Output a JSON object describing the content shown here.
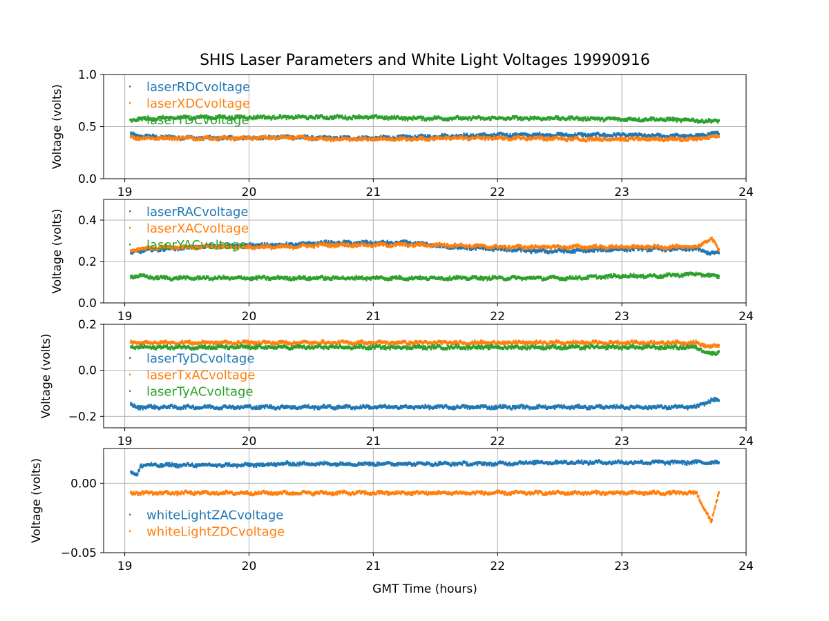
{
  "title": "SHIS Laser Parameters and White Light Voltages 19990916",
  "chart_data": [
    {
      "type": "scatter",
      "xlabel": "",
      "ylabel": "Voltage (volts)",
      "xlim": [
        18.83,
        24.0
      ],
      "ylim": [
        0.0,
        1.0
      ],
      "xticks": [
        19,
        20,
        21,
        22,
        23,
        24
      ],
      "xtick_labels": [
        "19",
        "20",
        "21",
        "22",
        "23",
        "24"
      ],
      "yticks": [
        0.0,
        0.5,
        1.0
      ],
      "ytick_labels": [
        "0.0",
        "0.5",
        "1.0"
      ],
      "grid": true,
      "legend_position": "top-left",
      "series": [
        {
          "name": "laserRDCvoltage",
          "color": "#1f77b4",
          "x": [
            19.05,
            19.1,
            19.3,
            19.6,
            20.0,
            20.3,
            20.6,
            21.0,
            21.3,
            21.6,
            22.0,
            22.3,
            22.6,
            23.0,
            23.3,
            23.6,
            23.72,
            23.78
          ],
          "y": [
            0.43,
            0.41,
            0.4,
            0.39,
            0.39,
            0.4,
            0.39,
            0.39,
            0.4,
            0.41,
            0.42,
            0.42,
            0.42,
            0.42,
            0.41,
            0.41,
            0.43,
            0.43
          ]
        },
        {
          "name": "laserXDCvoltage",
          "color": "#ff7f0e",
          "x": [
            19.05,
            19.1,
            19.3,
            19.6,
            20.0,
            20.3,
            20.6,
            21.0,
            21.3,
            21.6,
            22.0,
            22.3,
            22.6,
            23.0,
            23.3,
            23.6,
            23.72,
            23.78
          ],
          "y": [
            0.41,
            0.39,
            0.39,
            0.39,
            0.39,
            0.4,
            0.38,
            0.38,
            0.38,
            0.39,
            0.39,
            0.39,
            0.38,
            0.38,
            0.38,
            0.38,
            0.4,
            0.4
          ]
        },
        {
          "name": "laserYDCvoltage",
          "color": "#2ca02c",
          "x": [
            19.05,
            19.1,
            19.3,
            19.6,
            20.0,
            20.3,
            20.6,
            21.0,
            21.3,
            21.6,
            22.0,
            22.3,
            22.6,
            23.0,
            23.3,
            23.6,
            23.72,
            23.78
          ],
          "y": [
            0.56,
            0.57,
            0.58,
            0.59,
            0.59,
            0.59,
            0.59,
            0.59,
            0.58,
            0.58,
            0.58,
            0.58,
            0.58,
            0.57,
            0.57,
            0.56,
            0.55,
            0.56
          ]
        }
      ]
    },
    {
      "type": "scatter",
      "xlabel": "",
      "ylabel": "Voltage (volts)",
      "xlim": [
        18.83,
        24.0
      ],
      "ylim": [
        0.0,
        0.5
      ],
      "xticks": [
        19,
        20,
        21,
        22,
        23,
        24
      ],
      "xtick_labels": [
        "19",
        "20",
        "21",
        "22",
        "23",
        "24"
      ],
      "yticks": [
        0.0,
        0.2,
        0.4
      ],
      "ytick_labels": [
        "0.0",
        "0.2",
        "0.4"
      ],
      "grid": true,
      "legend_position": "top-left",
      "series": [
        {
          "name": "laserRACvoltage",
          "color": "#1f77b4",
          "x": [
            19.05,
            19.1,
            19.3,
            19.6,
            20.0,
            20.3,
            20.6,
            21.0,
            21.3,
            21.6,
            22.0,
            22.3,
            22.6,
            23.0,
            23.3,
            23.6,
            23.72,
            23.78
          ],
          "y": [
            0.24,
            0.25,
            0.26,
            0.27,
            0.28,
            0.28,
            0.29,
            0.29,
            0.29,
            0.27,
            0.26,
            0.25,
            0.25,
            0.26,
            0.26,
            0.26,
            0.24,
            0.24
          ]
        },
        {
          "name": "laserXACvoltage",
          "color": "#ff7f0e",
          "x": [
            19.05,
            19.1,
            19.3,
            19.6,
            20.0,
            20.3,
            20.6,
            21.0,
            21.3,
            21.6,
            22.0,
            22.3,
            22.6,
            23.0,
            23.3,
            23.6,
            23.72,
            23.78
          ],
          "y": [
            0.25,
            0.26,
            0.27,
            0.27,
            0.27,
            0.27,
            0.28,
            0.28,
            0.28,
            0.28,
            0.27,
            0.27,
            0.27,
            0.27,
            0.27,
            0.27,
            0.31,
            0.26
          ]
        },
        {
          "name": "laserYACvoltage",
          "color": "#2ca02c",
          "x": [
            19.05,
            19.1,
            19.3,
            19.6,
            20.0,
            20.3,
            20.6,
            21.0,
            21.3,
            21.6,
            22.0,
            22.3,
            22.6,
            23.0,
            23.3,
            23.6,
            23.72,
            23.78
          ],
          "y": [
            0.13,
            0.13,
            0.12,
            0.12,
            0.12,
            0.12,
            0.12,
            0.12,
            0.12,
            0.12,
            0.12,
            0.12,
            0.12,
            0.13,
            0.13,
            0.14,
            0.13,
            0.13
          ]
        }
      ]
    },
    {
      "type": "scatter",
      "xlabel": "",
      "ylabel": "Voltage (volts)",
      "xlim": [
        18.83,
        24.0
      ],
      "ylim": [
        -0.25,
        0.2
      ],
      "xticks": [
        19,
        20,
        21,
        22,
        23,
        24
      ],
      "xtick_labels": [
        "19",
        "20",
        "21",
        "22",
        "23",
        "24"
      ],
      "yticks": [
        -0.2,
        0.0,
        0.2
      ],
      "ytick_labels": [
        "−0.2",
        "0.0",
        "0.2"
      ],
      "grid": true,
      "legend_position": "center-left",
      "series": [
        {
          "name": "laserTyDCvoltage",
          "color": "#1f77b4",
          "x": [
            19.05,
            19.1,
            19.3,
            19.6,
            20.0,
            20.3,
            20.6,
            21.0,
            21.3,
            21.6,
            22.0,
            22.3,
            22.6,
            23.0,
            23.3,
            23.6,
            23.72,
            23.78
          ],
          "y": [
            -0.15,
            -0.16,
            -0.16,
            -0.16,
            -0.16,
            -0.16,
            -0.16,
            -0.16,
            -0.16,
            -0.16,
            -0.16,
            -0.16,
            -0.16,
            -0.16,
            -0.16,
            -0.16,
            -0.13,
            -0.13
          ]
        },
        {
          "name": "laserTxACvoltage",
          "color": "#ff7f0e",
          "x": [
            19.05,
            19.1,
            19.3,
            19.6,
            20.0,
            20.3,
            20.6,
            21.0,
            21.3,
            21.6,
            22.0,
            22.3,
            22.6,
            23.0,
            23.3,
            23.6,
            23.72,
            23.78
          ],
          "y": [
            0.12,
            0.12,
            0.12,
            0.12,
            0.12,
            0.12,
            0.12,
            0.12,
            0.12,
            0.12,
            0.12,
            0.12,
            0.12,
            0.12,
            0.12,
            0.12,
            0.1,
            0.11
          ]
        },
        {
          "name": "laserTyACvoltage",
          "color": "#2ca02c",
          "x": [
            19.05,
            19.1,
            19.3,
            19.6,
            20.0,
            20.3,
            20.6,
            21.0,
            21.3,
            21.6,
            22.0,
            22.3,
            22.6,
            23.0,
            23.3,
            23.6,
            23.72,
            23.78
          ],
          "y": [
            0.1,
            0.1,
            0.1,
            0.1,
            0.1,
            0.1,
            0.1,
            0.1,
            0.1,
            0.1,
            0.1,
            0.1,
            0.1,
            0.1,
            0.1,
            0.1,
            0.07,
            0.08
          ]
        }
      ]
    },
    {
      "type": "scatter",
      "xlabel": "GMT Time (hours)",
      "ylabel": "Voltage (volts)",
      "xlim": [
        18.83,
        24.0
      ],
      "ylim": [
        -0.05,
        0.025
      ],
      "xticks": [
        19,
        20,
        21,
        22,
        23,
        24
      ],
      "xtick_labels": [
        "19",
        "20",
        "21",
        "22",
        "23",
        "24"
      ],
      "yticks": [
        -0.05,
        0.0
      ],
      "ytick_labels": [
        "−0.05",
        "0.00"
      ],
      "grid": true,
      "legend_position": "lower-left",
      "series": [
        {
          "name": "whiteLightZACvoltage",
          "color": "#1f77b4",
          "x": [
            19.05,
            19.1,
            19.13,
            19.3,
            19.6,
            20.0,
            20.3,
            20.6,
            21.0,
            21.3,
            21.6,
            22.0,
            22.3,
            22.6,
            23.0,
            23.3,
            23.6,
            23.72,
            23.78
          ],
          "y": [
            0.008,
            0.006,
            0.013,
            0.013,
            0.013,
            0.013,
            0.014,
            0.014,
            0.014,
            0.014,
            0.014,
            0.014,
            0.015,
            0.015,
            0.015,
            0.015,
            0.015,
            0.015,
            0.015
          ]
        },
        {
          "name": "whiteLightZDCvoltage",
          "color": "#ff7f0e",
          "x": [
            19.05,
            19.1,
            19.3,
            19.6,
            20.0,
            20.3,
            20.6,
            21.0,
            21.3,
            21.6,
            22.0,
            22.3,
            22.6,
            23.0,
            23.3,
            23.6,
            23.72,
            23.78
          ],
          "y": [
            -0.007,
            -0.007,
            -0.007,
            -0.007,
            -0.007,
            -0.007,
            -0.007,
            -0.007,
            -0.007,
            -0.007,
            -0.007,
            -0.007,
            -0.007,
            -0.007,
            -0.007,
            -0.007,
            -0.028,
            -0.007
          ]
        }
      ]
    }
  ]
}
